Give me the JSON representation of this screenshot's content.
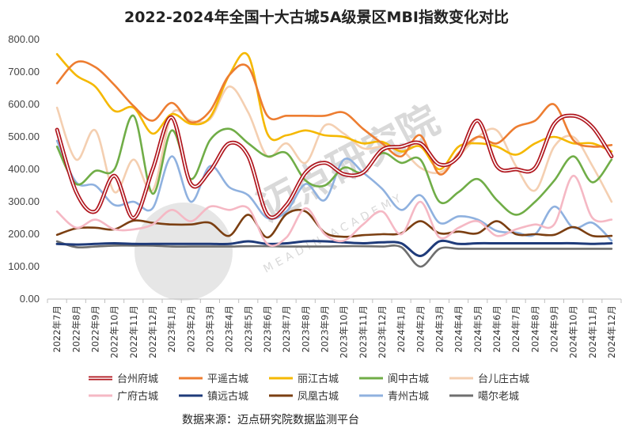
{
  "chart_data": {
    "type": "line",
    "title": "2022-2024年全国十大古城5A级景区MBI指数变化对比",
    "ylim": [
      0,
      800
    ],
    "yticks": [
      "0.00",
      "100.00",
      "200.00",
      "300.00",
      "400.00",
      "500.00",
      "600.00",
      "700.00",
      "800.00"
    ],
    "categories": [
      "2022年7月",
      "2022年8月",
      "2022年9月",
      "2022年10月",
      "2022年11月",
      "2022年12月",
      "2023年1月",
      "2023年2月",
      "2023年3月",
      "2023年4月",
      "2023年5月",
      "2023年6月",
      "2023年7月",
      "2023年8月",
      "2023年9月",
      "2023年10月",
      "2023年11月",
      "2023年12月",
      "2024年1月",
      "2024年2月",
      "2024年3月",
      "2024年4月",
      "2024年5月",
      "2024年6月",
      "2024年7月",
      "2024年8月",
      "2024年9月",
      "2024年10月",
      "2024年11月",
      "2024年12月"
    ],
    "series": [
      {
        "name": "台州府城",
        "color": "#b0171f",
        "values": [
          522,
          330,
          270,
          380,
          250,
          400,
          560,
          355,
          395,
          480,
          440,
          260,
          290,
          390,
          420,
          385,
          390,
          460,
          470,
          480,
          415,
          440,
          550,
          410,
          400,
          405,
          540,
          565,
          530,
          440
        ],
        "outline": true
      },
      {
        "name": "平遥古城",
        "color": "#ed7d31",
        "values": [
          665,
          730,
          715,
          660,
          595,
          550,
          605,
          545,
          580,
          690,
          715,
          565,
          565,
          565,
          565,
          575,
          525,
          480,
          440,
          505,
          385,
          450,
          500,
          480,
          530,
          550,
          600,
          490,
          470,
          475
        ]
      },
      {
        "name": "丽江古城",
        "color": "#f5b800",
        "values": [
          755,
          690,
          655,
          580,
          590,
          510,
          570,
          540,
          560,
          690,
          750,
          510,
          505,
          520,
          505,
          500,
          480,
          485,
          455,
          470,
          400,
          470,
          480,
          470,
          445,
          480,
          500,
          480,
          480,
          455
        ]
      },
      {
        "name": "阆中古城",
        "color": "#70ad47",
        "values": [
          470,
          355,
          395,
          400,
          565,
          325,
          520,
          370,
          490,
          525,
          480,
          440,
          450,
          365,
          350,
          405,
          390,
          450,
          420,
          430,
          300,
          330,
          370,
          305,
          260,
          300,
          365,
          440,
          360,
          430
        ]
      },
      {
        "name": "台儿庄古城",
        "color": "#f4cfb1",
        "values": [
          590,
          430,
          520,
          330,
          430,
          335,
          570,
          550,
          555,
          655,
          575,
          440,
          480,
          420,
          535,
          510,
          465,
          470,
          460,
          405,
          390,
          440,
          500,
          520,
          410,
          335,
          470,
          500,
          410,
          300
        ]
      },
      {
        "name": "广府古城",
        "color": "#f5b8c4",
        "values": [
          270,
          220,
          245,
          215,
          215,
          230,
          275,
          240,
          285,
          275,
          280,
          170,
          190,
          280,
          200,
          180,
          230,
          270,
          200,
          300,
          190,
          220,
          240,
          195,
          215,
          230,
          230,
          380,
          250,
          245
        ]
      },
      {
        "name": "镇远古城",
        "color": "#1f3b7a",
        "values": [
          170,
          168,
          170,
          172,
          170,
          170,
          170,
          170,
          170,
          170,
          178,
          170,
          172,
          178,
          178,
          175,
          172,
          175,
          172,
          133,
          178,
          170,
          172,
          172,
          172,
          172,
          172,
          172,
          170,
          172
        ],
        "thick": true
      },
      {
        "name": "凤凰古城",
        "color": "#7b3f12",
        "values": [
          198,
          218,
          220,
          215,
          242,
          235,
          230,
          230,
          235,
          195,
          260,
          190,
          262,
          270,
          205,
          192,
          197,
          200,
          203,
          240,
          203,
          208,
          203,
          240,
          200,
          200,
          198,
          222,
          195,
          195
        ]
      },
      {
        "name": "青州古城",
        "color": "#8fb1df",
        "values": [
          488,
          360,
          350,
          290,
          300,
          280,
          440,
          300,
          410,
          345,
          320,
          250,
          270,
          355,
          305,
          430,
          390,
          340,
          275,
          320,
          235,
          255,
          245,
          210,
          205,
          200,
          285,
          220,
          235,
          180
        ]
      },
      {
        "name": "噶尔老城",
        "color": "#6f6f6f",
        "values": [
          178,
          160,
          162,
          165,
          165,
          165,
          162,
          162,
          162,
          162,
          163,
          163,
          162,
          162,
          162,
          163,
          163,
          162,
          160,
          100,
          155,
          155,
          155,
          155,
          155,
          155,
          155,
          155,
          155,
          155
        ]
      }
    ]
  },
  "source_text": "数据来源：迈点研究院数据监测平台",
  "watermark": {
    "main": "迈点研究院",
    "sub": "MEADIN ACADEMY"
  }
}
